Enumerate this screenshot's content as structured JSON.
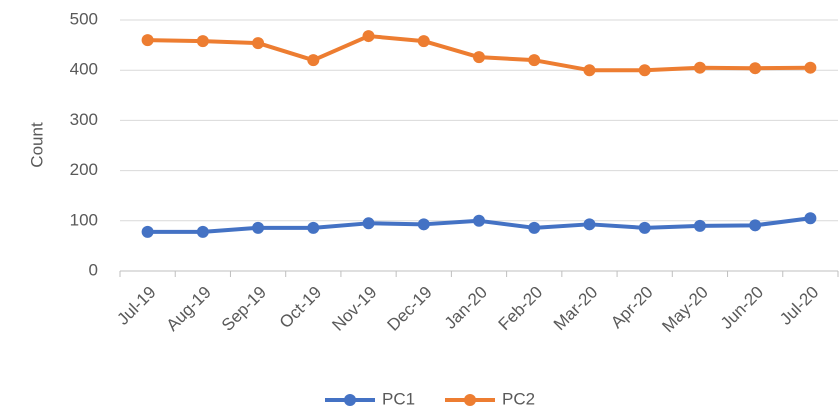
{
  "chart_data": {
    "type": "line",
    "y_label": "Count",
    "categories": [
      "Jul-19",
      "Aug-19",
      "Sep-19",
      "Oct-19",
      "Nov-19",
      "Dec-19",
      "Jan-20",
      "Feb-20",
      "Mar-20",
      "Apr-20",
      "May-20",
      "Jun-20",
      "Jul-20"
    ],
    "series": [
      {
        "name": "PC1",
        "color": "#4472c4",
        "values": [
          78,
          78,
          86,
          86,
          95,
          93,
          100,
          86,
          93,
          86,
          90,
          91,
          105
        ]
      },
      {
        "name": "PC2",
        "color": "#ed7d31",
        "values": [
          460,
          458,
          454,
          420,
          468,
          458,
          426,
          420,
          400,
          400,
          405,
          404,
          405
        ]
      }
    ],
    "ylim": [
      0,
      500
    ],
    "yticks": [
      0,
      100,
      200,
      300,
      400,
      500
    ],
    "grid": true,
    "legend": "bottom"
  }
}
